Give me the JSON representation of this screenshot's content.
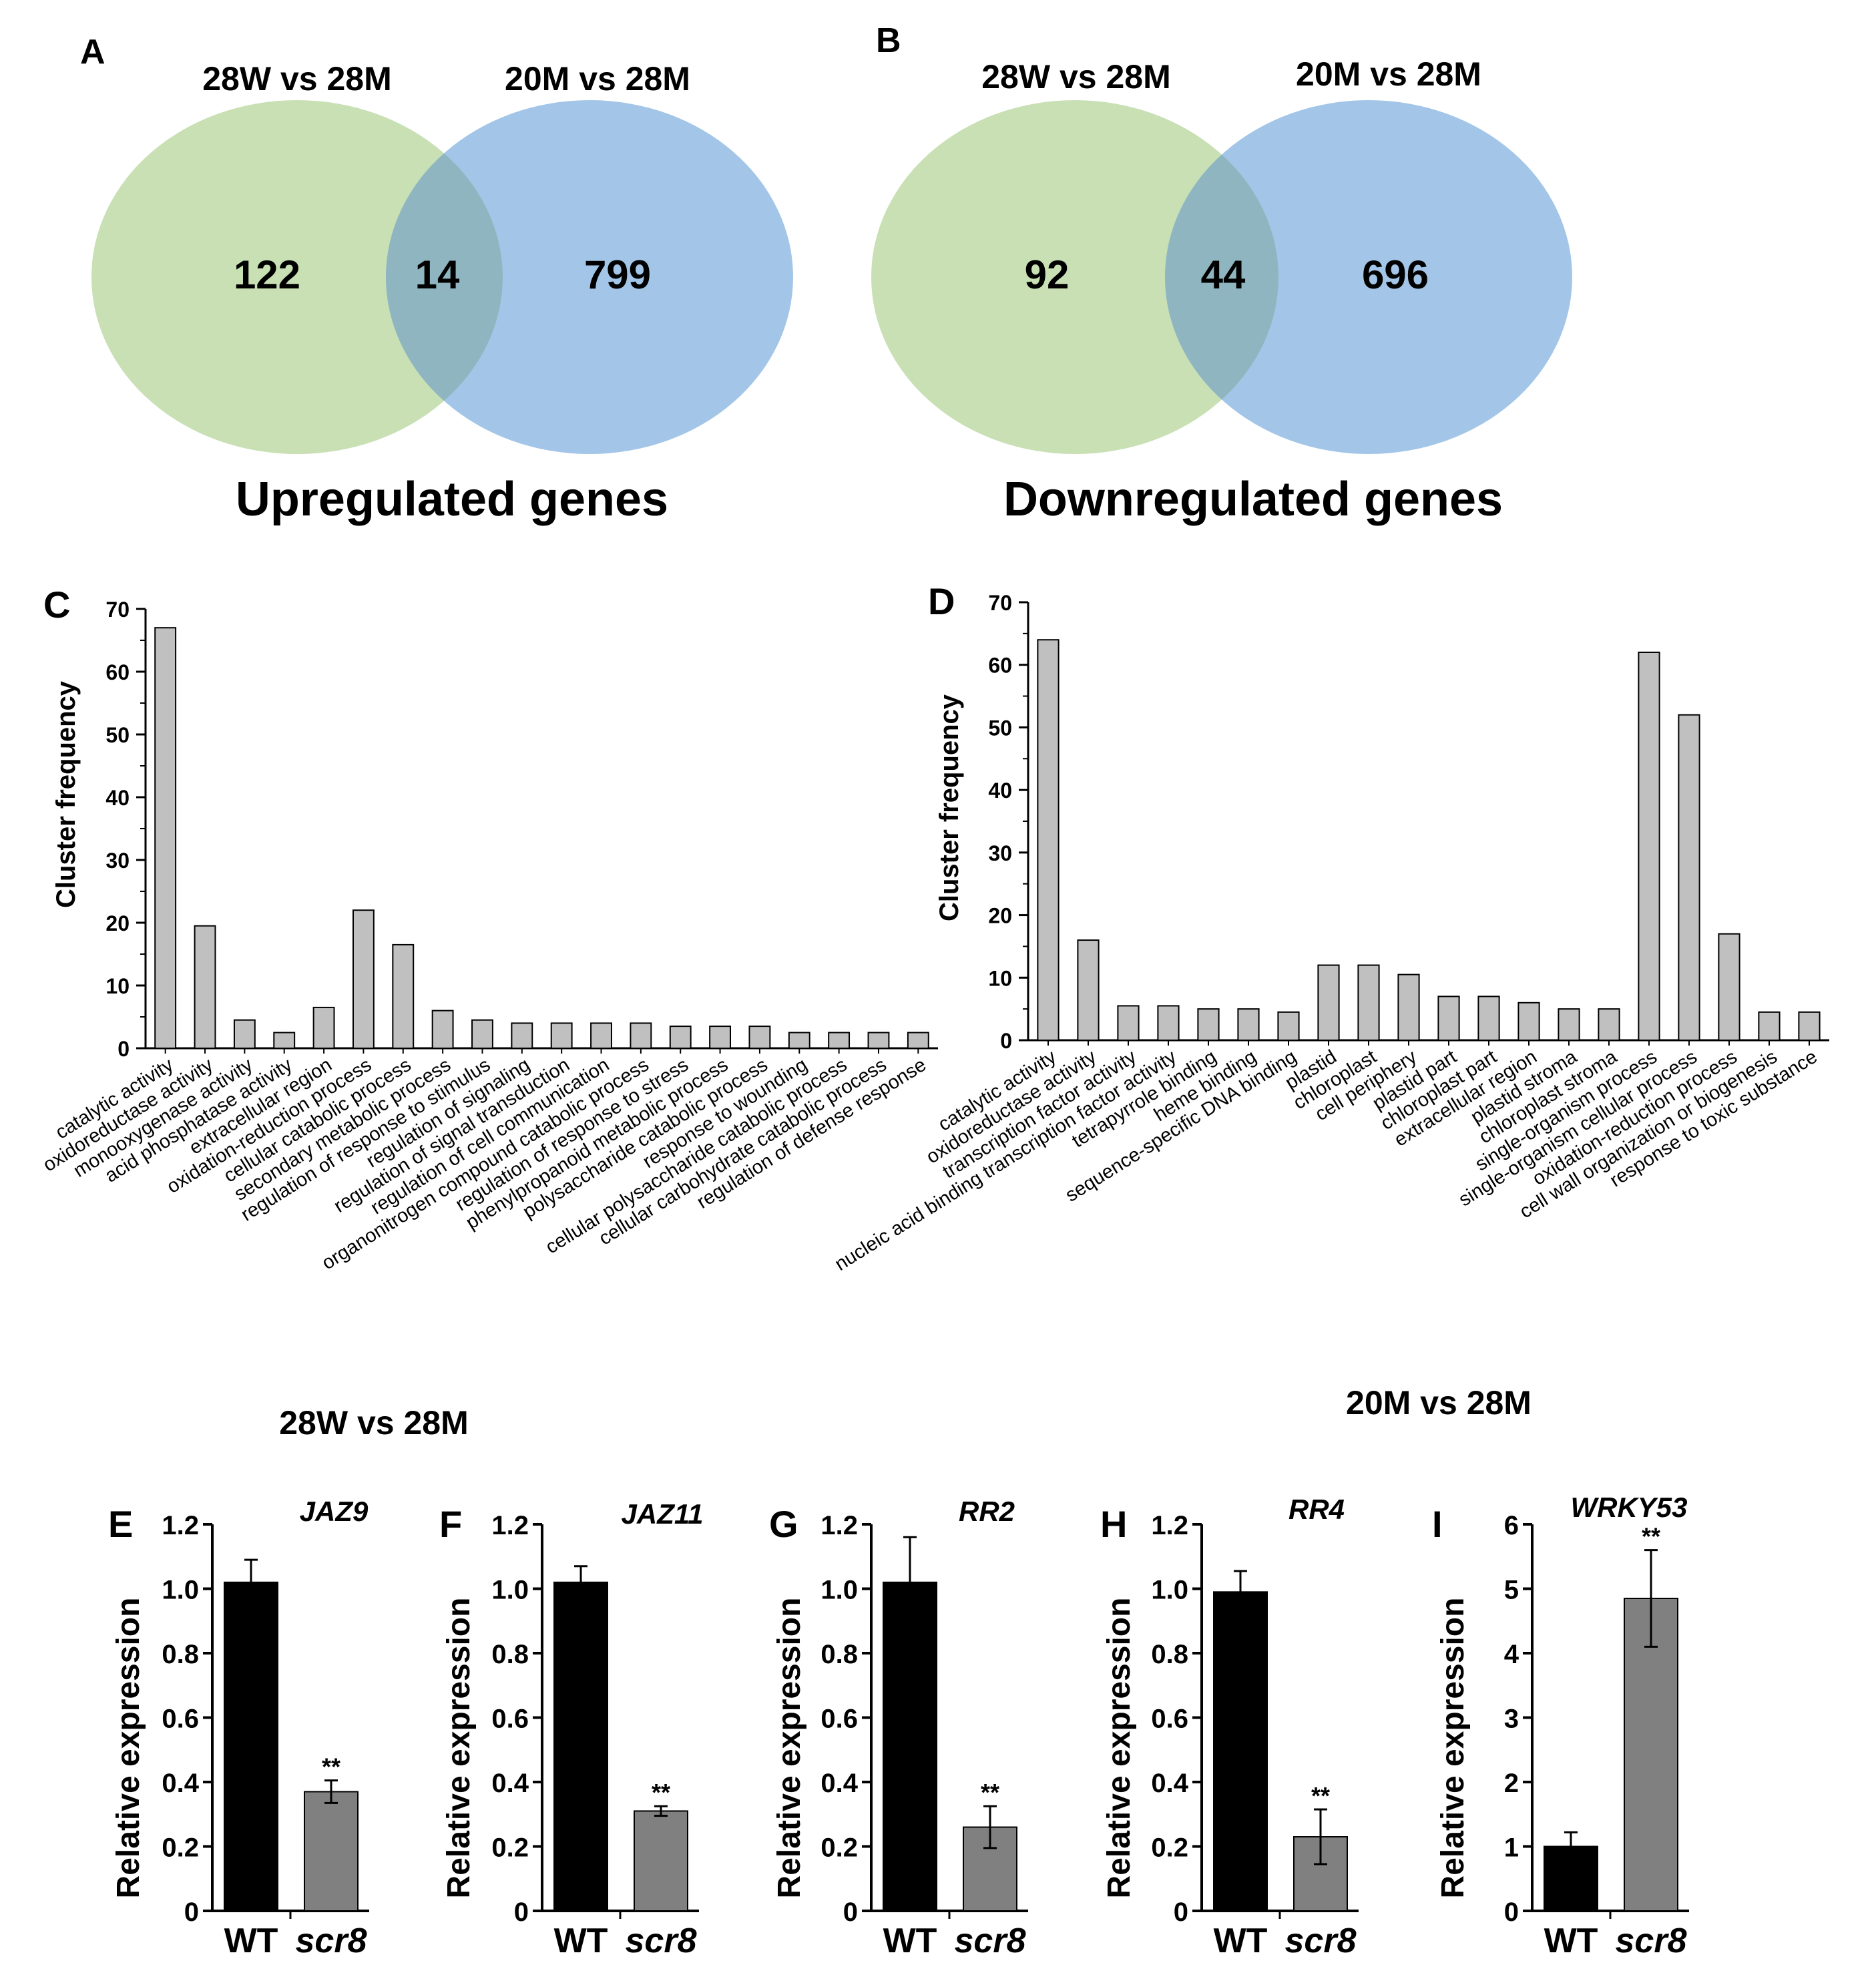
{
  "colors": {
    "venn_left": "#c8e0b4",
    "venn_right": "#a3c6e8",
    "venn_overlap": "#8fb6c0",
    "go_bar": "#c0c0c0",
    "wt_bar": "#000000",
    "mutant_bar": "#808080"
  },
  "venn": [
    {
      "panel": "A",
      "left_label": "28W vs 28M",
      "right_label": "20M vs 28M",
      "left_only": "122",
      "overlap": "14",
      "right_only": "799",
      "title": "Upregulated genes"
    },
    {
      "panel": "B",
      "left_label": "28W vs 28M",
      "right_label": "20M vs 28M",
      "left_only": "92",
      "overlap": "44",
      "right_only": "696",
      "title": "Downregulated genes"
    }
  ],
  "chart_data": [
    {
      "panel": "C",
      "type": "bar",
      "title": "28W vs 28M",
      "ylabel": "Cluster frequency",
      "xlabel": "",
      "ylim": [
        0,
        70
      ],
      "yticks": [
        "0",
        "10",
        "20",
        "30",
        "40",
        "50",
        "60",
        "70"
      ],
      "categories": [
        "catalytic activity",
        "oxidoreductase activity",
        "monooxygenase activity",
        "acid phosphatase activity",
        "extracellular region",
        "oxidation-reduction process",
        "cellular catabolic process",
        "secondary metabolic process",
        "regulation of response to stimulus",
        "regulation of signaling",
        "regulation of signal transduction",
        "regulation of cell communication",
        "organonitrogen compound catabolic process",
        "regulation of response to stress",
        "phenylpropanoid metabolic process",
        "polysaccharide catabolic process",
        "response to wounding",
        "cellular polysaccharide catabolic process",
        "cellular carbohydrate catabolic process",
        "regulation of defense response"
      ],
      "values": [
        67,
        19.5,
        4.5,
        2.5,
        6.5,
        22,
        16.5,
        6,
        4.5,
        4,
        4,
        4,
        4,
        3.5,
        3.5,
        3.5,
        2.5,
        2.5,
        2.5,
        2.5
      ]
    },
    {
      "panel": "D",
      "type": "bar",
      "title": "20M vs 28M",
      "ylabel": "Cluster frequency",
      "xlabel": "",
      "ylim": [
        0,
        70
      ],
      "yticks": [
        "0",
        "10",
        "20",
        "30",
        "40",
        "50",
        "60",
        "70"
      ],
      "categories": [
        "catalytic activity",
        "oxidoreductase activity",
        "transcription factor activity",
        "nucleic acid binding transcription factor activity",
        "tetrapyrrole binding",
        "heme binding",
        "sequence-specific DNA binding",
        "plastid",
        "chloroplast",
        "cell periphery",
        "plastid part",
        "chloroplast part",
        "extracellular region",
        "plastid stroma",
        "chloroplast stroma",
        "single-organism process",
        "single-organism cellular process",
        "oxidation-reduction process",
        "cell wall organization or biogenesis",
        "response to toxic substance"
      ],
      "values": [
        64,
        16,
        5.5,
        5.5,
        5,
        5,
        4.5,
        12,
        12,
        10.5,
        7,
        7,
        6,
        5,
        5,
        62,
        52,
        17,
        4.5,
        4.5
      ]
    },
    {
      "panel": "E",
      "type": "bar",
      "title": "JAZ9",
      "ylabel": "Relative expression",
      "xlabel": "",
      "ylim": [
        0,
        1.2
      ],
      "yticks": [
        "0",
        "0.2",
        "0.4",
        "0.6",
        "0.8",
        "1.0",
        "1.2"
      ],
      "categories": [
        "WT",
        "scr8"
      ],
      "values": [
        1.02,
        0.37
      ],
      "errors": [
        0.07,
        0.035
      ],
      "significance": [
        "",
        "**"
      ]
    },
    {
      "panel": "F",
      "type": "bar",
      "title": "JAZ11",
      "ylabel": "Relative expression",
      "xlabel": "",
      "ylim": [
        0,
        1.2
      ],
      "yticks": [
        "0",
        "0.2",
        "0.4",
        "0.6",
        "0.8",
        "1.0",
        "1.2"
      ],
      "categories": [
        "WT",
        "scr8"
      ],
      "values": [
        1.02,
        0.31
      ],
      "errors": [
        0.05,
        0.015
      ],
      "significance": [
        "",
        "**"
      ]
    },
    {
      "panel": "G",
      "type": "bar",
      "title": "RR2",
      "ylabel": "Relative expression",
      "xlabel": "",
      "ylim": [
        0,
        1.2
      ],
      "yticks": [
        "0",
        "0.2",
        "0.4",
        "0.6",
        "0.8",
        "1.0",
        "1.2"
      ],
      "categories": [
        "WT",
        "scr8"
      ],
      "values": [
        1.02,
        0.26
      ],
      "errors": [
        0.14,
        0.065
      ],
      "significance": [
        "",
        "**"
      ]
    },
    {
      "panel": "H",
      "type": "bar",
      "title": "RR4",
      "ylabel": "Relative expression",
      "xlabel": "",
      "ylim": [
        0,
        1.2
      ],
      "yticks": [
        "0",
        "0.2",
        "0.4",
        "0.6",
        "0.8",
        "1.0",
        "1.2"
      ],
      "categories": [
        "WT",
        "scr8"
      ],
      "values": [
        0.99,
        0.23
      ],
      "errors": [
        0.065,
        0.085
      ],
      "significance": [
        "",
        "**"
      ]
    },
    {
      "panel": "I",
      "type": "bar",
      "title": "WRKY53",
      "ylabel": "Relative expression",
      "xlabel": "",
      "ylim": [
        0,
        6
      ],
      "yticks": [
        "0",
        "1",
        "2",
        "3",
        "4",
        "5",
        "6"
      ],
      "categories": [
        "WT",
        "scr8"
      ],
      "values": [
        1.0,
        4.85
      ],
      "errors": [
        0.22,
        0.75
      ],
      "significance": [
        "",
        "**"
      ]
    }
  ]
}
